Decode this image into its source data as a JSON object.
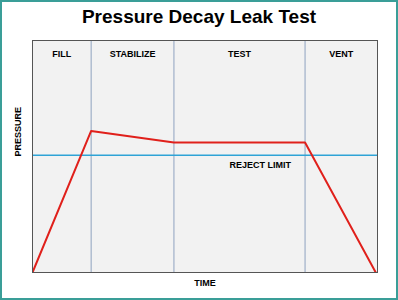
{
  "chart_data": {
    "type": "line",
    "title": "Pressure Decay Leak Test",
    "xlabel": "TIME",
    "ylabel": "PRESSURE",
    "x": [
      0,
      17,
      41,
      79,
      99.5
    ],
    "values": [
      0,
      61,
      56,
      56,
      0
    ],
    "color": "#e0201b",
    "xlim": [
      0,
      100
    ],
    "ylim": [
      0,
      100
    ],
    "tick_labels": false,
    "grid": false,
    "phases": [
      {
        "label": "FILL",
        "start": 0,
        "end": 17
      },
      {
        "label": "STABILIZE",
        "start": 17,
        "end": 41
      },
      {
        "label": "TEST",
        "start": 41,
        "end": 79
      },
      {
        "label": "VENT",
        "start": 79,
        "end": 100
      }
    ],
    "reject_limit": {
      "label": "REJECT LIMIT",
      "value": 50.5,
      "color": "#2ea3d6"
    }
  }
}
